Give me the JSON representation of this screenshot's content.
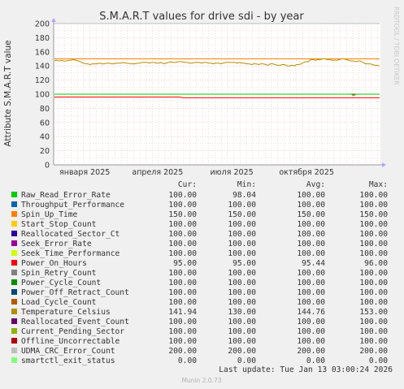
{
  "chart_data": {
    "type": "line",
    "title": "S.M.A.R.T values for drive sdi - by year",
    "ylabel": "Attribute S.M.A.R.T value",
    "side_label": "RRDTOOL / TOBI OETIKER",
    "ylim": [
      0,
      200
    ],
    "yticks": [
      0,
      20,
      40,
      60,
      80,
      100,
      120,
      140,
      160,
      180,
      200
    ],
    "x_tick_labels": [
      "января 2025",
      "апреля 2025",
      "июля 2025",
      "октября 2025"
    ],
    "grid": true,
    "legend_headers": {
      "cur": "Cur:",
      "min": "Min:",
      "avg": "Avg:",
      "max": "Max:"
    },
    "series": [
      {
        "name": "Raw_Read_Error_Rate",
        "color": "#00cc00",
        "cur": "100.00",
        "min": "98.04",
        "avg": "100.00",
        "max": "100.00"
      },
      {
        "name": "Throughput_Performance",
        "color": "#0066b3",
        "cur": "100.00",
        "min": "100.00",
        "avg": "100.00",
        "max": "100.00"
      },
      {
        "name": "Spin_Up_Time",
        "color": "#ff8000",
        "cur": "150.00",
        "min": "150.00",
        "avg": "150.00",
        "max": "150.00"
      },
      {
        "name": "Start_Stop_Count",
        "color": "#ffcc00",
        "cur": "100.00",
        "min": "100.00",
        "avg": "100.00",
        "max": "100.00"
      },
      {
        "name": "Reallocated_Sector_Ct",
        "color": "#330099",
        "cur": "100.00",
        "min": "100.00",
        "avg": "100.00",
        "max": "100.00"
      },
      {
        "name": "Seek_Error_Rate",
        "color": "#990099",
        "cur": "100.00",
        "min": "100.00",
        "avg": "100.00",
        "max": "100.00"
      },
      {
        "name": "Seek_Time_Performance",
        "color": "#ccff00",
        "cur": "100.00",
        "min": "100.00",
        "avg": "100.00",
        "max": "100.00"
      },
      {
        "name": "Power_On_Hours",
        "color": "#ff0000",
        "cur": "95.00",
        "min": "95.00",
        "avg": "95.44",
        "max": "96.00"
      },
      {
        "name": "Spin_Retry_Count",
        "color": "#808080",
        "cur": "100.00",
        "min": "100.00",
        "avg": "100.00",
        "max": "100.00"
      },
      {
        "name": "Power_Cycle_Count",
        "color": "#008f00",
        "cur": "100.00",
        "min": "100.00",
        "avg": "100.00",
        "max": "100.00"
      },
      {
        "name": "Power_Off_Retract_Count",
        "color": "#00487d",
        "cur": "100.00",
        "min": "100.00",
        "avg": "100.00",
        "max": "100.00"
      },
      {
        "name": "Load_Cycle_Count",
        "color": "#b35a00",
        "cur": "100.00",
        "min": "100.00",
        "avg": "100.00",
        "max": "100.00"
      },
      {
        "name": "Temperature_Celsius",
        "color": "#b38f00",
        "cur": "141.94",
        "min": "130.00",
        "avg": "144.76",
        "max": "153.00"
      },
      {
        "name": "Reallocated_Event_Count",
        "color": "#6b006b",
        "cur": "100.00",
        "min": "100.00",
        "avg": "100.00",
        "max": "100.00"
      },
      {
        "name": "Current_Pending_Sector",
        "color": "#8fb300",
        "cur": "100.00",
        "min": "100.00",
        "avg": "100.00",
        "max": "100.00"
      },
      {
        "name": "Offline_Uncorrectable",
        "color": "#b30000",
        "cur": "100.00",
        "min": "100.00",
        "avg": "100.00",
        "max": "100.00"
      },
      {
        "name": "UDMA_CRC_Error_Count",
        "color": "#bebebe",
        "cur": "200.00",
        "min": "200.00",
        "avg": "200.00",
        "max": "200.00"
      },
      {
        "name": "smartctl_exit_status",
        "color": "#80ff80",
        "cur": "0.00",
        "min": "0.00",
        "avg": "0.00",
        "max": "0.00"
      }
    ],
    "temperature_trace": [
      148,
      148,
      147,
      148,
      147,
      147,
      148,
      148,
      149,
      148,
      147,
      146,
      144,
      143,
      143,
      142,
      143,
      143,
      143,
      144,
      143,
      143,
      144,
      144,
      143,
      143,
      144,
      144,
      144,
      145,
      144,
      144,
      143,
      143,
      143,
      144,
      144,
      145,
      145,
      145,
      144,
      145,
      145,
      144,
      144,
      145,
      143,
      144,
      145,
      146,
      145,
      145,
      146,
      146,
      146,
      145,
      145,
      144,
      144,
      145,
      145,
      145,
      144,
      145,
      145,
      144,
      144,
      143,
      144,
      144,
      143,
      144,
      145,
      145,
      145,
      145,
      145,
      144,
      145,
      144,
      144,
      143,
      143,
      142,
      143,
      143,
      142,
      143,
      143,
      142,
      141,
      143,
      143,
      142,
      141,
      141,
      142,
      142,
      140,
      140,
      141,
      140,
      142,
      142,
      143,
      145,
      146,
      146,
      149,
      149,
      148,
      149,
      149,
      150,
      150,
      149,
      149,
      148,
      148,
      148,
      149,
      150,
      150,
      149,
      148,
      147,
      147,
      146,
      147,
      147,
      145,
      143,
      143,
      143,
      142,
      141,
      141,
      140
    ],
    "power_on_hours_trace": [
      96,
      96,
      96,
      96,
      96,
      96,
      96,
      96,
      96,
      96,
      96,
      96,
      96,
      96,
      96,
      96,
      96,
      96,
      96,
      96,
      96,
      96,
      96,
      96,
      96,
      96,
      96,
      96,
      96,
      96,
      96,
      96,
      96,
      96,
      96,
      96,
      96,
      96,
      96,
      96,
      96,
      96,
      96,
      96,
      96,
      96,
      96,
      96,
      96,
      96,
      96,
      96,
      96,
      96,
      95,
      95,
      95,
      95,
      95,
      95,
      95,
      95,
      95,
      95,
      95,
      95,
      95,
      95,
      95,
      95,
      95,
      95,
      95,
      95,
      95,
      95,
      95,
      95,
      95,
      95,
      95,
      95,
      95,
      95,
      95,
      95,
      95,
      95,
      95,
      95,
      95,
      95,
      95,
      95,
      95,
      95,
      95,
      95,
      95,
      95,
      95,
      95,
      95,
      95,
      95,
      95,
      95,
      95,
      95,
      95,
      95,
      95,
      95,
      95,
      95,
      95,
      95,
      95,
      95,
      95,
      95,
      95,
      95,
      95,
      95,
      95,
      95,
      95,
      95,
      95,
      95,
      95,
      95,
      95,
      95,
      95,
      95,
      95
    ],
    "raw_read_error_rate_trace": [
      100,
      100,
      100,
      100,
      100,
      100,
      100,
      100,
      100,
      100,
      100,
      100,
      100,
      100,
      100,
      100,
      100,
      100,
      100,
      100,
      100,
      100,
      100,
      100,
      100,
      100,
      100,
      100,
      100,
      100,
      100,
      100,
      100,
      100,
      100,
      100,
      100,
      100,
      100,
      100,
      100,
      100,
      100,
      100,
      100,
      100,
      100,
      100,
      100,
      100,
      100,
      100,
      100,
      100,
      100,
      100,
      100,
      100,
      100,
      100,
      100,
      100,
      100,
      100,
      100,
      100,
      100,
      100,
      100,
      100,
      100,
      100,
      100,
      100,
      100,
      100,
      100,
      100,
      100,
      100,
      100,
      100,
      100,
      100,
      100,
      100,
      100,
      100,
      100,
      100,
      100,
      100,
      100,
      100,
      100,
      100,
      100,
      100,
      100,
      100,
      100,
      100,
      100,
      100,
      100,
      100,
      100,
      100,
      100,
      100,
      100,
      100,
      100,
      100,
      100,
      100,
      100,
      100,
      100,
      100,
      100,
      100,
      100,
      100,
      100,
      100,
      98,
      100,
      100,
      100,
      100,
      100,
      100,
      100,
      100,
      100,
      100,
      100
    ]
  },
  "footer": {
    "last_update": "Last update: Tue Jan 13 03:00:24 2026",
    "munin": "Munin 2.0.73"
  }
}
